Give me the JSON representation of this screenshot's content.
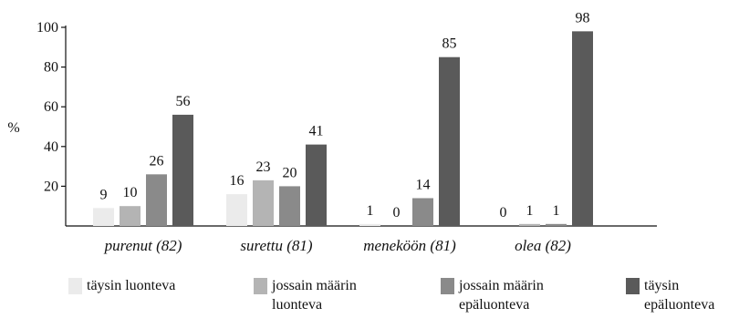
{
  "chart_data": {
    "type": "bar",
    "ylabel": "%",
    "ylim": [
      0,
      100
    ],
    "yticks": [
      20,
      40,
      60,
      80,
      100
    ],
    "categories": [
      "purenut (82)",
      "surettu (81)",
      "meneköön (81)",
      "olea (82)"
    ],
    "series": [
      {
        "name": "täysin luonteva",
        "color": "#ebebeb",
        "values": [
          9,
          16,
          1,
          0
        ]
      },
      {
        "name": "jossain määrin\nluonteva",
        "color": "#b4b4b4",
        "values": [
          10,
          23,
          0,
          1
        ]
      },
      {
        "name": "jossain määrin\nepäluonteva",
        "color": "#8a8a8a",
        "values": [
          26,
          20,
          14,
          1
        ]
      },
      {
        "name": "täysin\nepäluonteva",
        "color": "#5a5a5a",
        "values": [
          56,
          41,
          85,
          98
        ]
      }
    ],
    "grid": false,
    "legend_position": "bottom"
  }
}
